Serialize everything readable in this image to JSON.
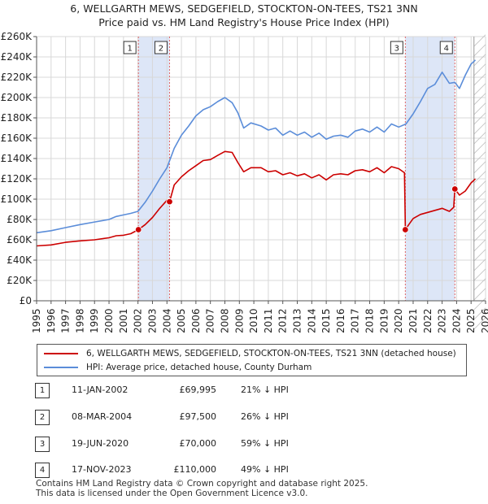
{
  "title_line1": "6, WELLGARTH MEWS, SEDGEFIELD, STOCKTON-ON-TEES, TS21 3NN",
  "title_line2": "Price paid vs. HM Land Registry's House Price Index (HPI)",
  "colors": {
    "price_line": "#cc0000",
    "hpi_line": "#5b8dd9",
    "shade": "#dde6f7",
    "grid": "#d8d8d8",
    "marker_dash": "#e06666"
  },
  "chart_data": {
    "type": "line",
    "title": "6, WELLGARTH MEWS, SEDGEFIELD, STOCKTON-ON-TEES, TS21 3NN — Price paid vs. HM Land Registry's House Price Index (HPI)",
    "xlabel": "",
    "ylabel": "",
    "xlim": [
      1995,
      2026
    ],
    "ylim": [
      0,
      260000
    ],
    "grid": true,
    "y_ticks": [
      0,
      20000,
      40000,
      60000,
      80000,
      100000,
      120000,
      140000,
      160000,
      180000,
      200000,
      220000,
      240000,
      260000
    ],
    "y_tick_labels": [
      "£0",
      "£20K",
      "£40K",
      "£60K",
      "£80K",
      "£100K",
      "£120K",
      "£140K",
      "£160K",
      "£180K",
      "£200K",
      "£220K",
      "£240K",
      "£260K"
    ],
    "x_ticks": [
      1995,
      1996,
      1997,
      1998,
      1999,
      2000,
      2001,
      2002,
      2003,
      2004,
      2005,
      2006,
      2007,
      2008,
      2009,
      2010,
      2011,
      2012,
      2013,
      2014,
      2015,
      2016,
      2017,
      2018,
      2019,
      2020,
      2021,
      2022,
      2023,
      2024,
      2025,
      2026
    ],
    "x_tick_labels": [
      "1995",
      "1996",
      "1997",
      "1998",
      "1999",
      "2000",
      "2001",
      "2002",
      "2003",
      "2004",
      "2005",
      "2006",
      "2007",
      "2008",
      "2009",
      "2010",
      "2011",
      "2012",
      "2013",
      "2014",
      "2015",
      "2016",
      "2017",
      "2018",
      "2019",
      "2020",
      "2021",
      "2022",
      "2023",
      "2024",
      "2025",
      "2026"
    ],
    "shaded_ranges": [
      [
        2002.03,
        2004.18
      ],
      [
        2020.46,
        2023.88
      ]
    ],
    "forecast_start": 2025.2,
    "markers": [
      {
        "label": "1",
        "x": 2002.03,
        "y": 69995
      },
      {
        "label": "2",
        "x": 2004.18,
        "y": 97500
      },
      {
        "label": "3",
        "x": 2020.46,
        "y": 70000
      },
      {
        "label": "4",
        "x": 2023.88,
        "y": 110000
      }
    ],
    "series": [
      {
        "name": "6, WELLGARTH MEWS, SEDGEFIELD, STOCKTON-ON-TEES, TS21 3NN (detached house)",
        "color": "#cc0000",
        "x": [
          1995,
          1996,
          1997,
          1998,
          1999,
          2000,
          2000.5,
          2001,
          2001.5,
          2002.03,
          2002.5,
          2003,
          2003.5,
          2004.0,
          2004.18,
          2004.5,
          2005,
          2005.5,
          2006,
          2006.5,
          2007,
          2007.5,
          2008,
          2008.5,
          2008.9,
          2009.3,
          2009.8,
          2010.5,
          2011,
          2011.5,
          2012,
          2012.5,
          2013,
          2013.5,
          2014,
          2014.5,
          2015,
          2015.5,
          2016,
          2016.5,
          2017,
          2017.5,
          2018,
          2018.5,
          2019,
          2019.5,
          2020,
          2020.4,
          2020.46,
          2020.7,
          2021,
          2021.5,
          2022,
          2022.5,
          2023,
          2023.5,
          2023.8,
          2023.88,
          2024.2,
          2024.6,
          2025,
          2025.3
        ],
        "values": [
          54000,
          55000,
          57500,
          59000,
          60000,
          62000,
          64000,
          64500,
          66000,
          69995,
          75000,
          82000,
          91000,
          99000,
          97500,
          114000,
          122000,
          128000,
          133000,
          138000,
          139000,
          143000,
          147000,
          146000,
          136000,
          127000,
          131000,
          131000,
          127000,
          128000,
          124000,
          126000,
          123000,
          125000,
          121000,
          124000,
          119000,
          124000,
          125000,
          124000,
          128000,
          129000,
          127000,
          131000,
          126000,
          132000,
          130000,
          126000,
          70000,
          75000,
          81000,
          85000,
          87000,
          89000,
          91000,
          88000,
          92000,
          110000,
          104000,
          108000,
          116000,
          120000
        ]
      },
      {
        "name": "HPI: Average price, detached house, County Durham",
        "color": "#5b8dd9",
        "x": [
          1995,
          1996,
          1997,
          1998,
          1999,
          2000,
          2000.5,
          2001,
          2001.5,
          2002,
          2002.5,
          2003,
          2003.5,
          2004,
          2004.5,
          2005,
          2005.5,
          2006,
          2006.5,
          2007,
          2007.5,
          2008,
          2008.5,
          2008.9,
          2009.3,
          2009.8,
          2010.5,
          2011,
          2011.5,
          2012,
          2012.5,
          2013,
          2013.5,
          2014,
          2014.5,
          2015,
          2015.5,
          2016,
          2016.5,
          2017,
          2017.5,
          2018,
          2018.5,
          2019,
          2019.5,
          2020,
          2020.5,
          2021,
          2021.5,
          2022,
          2022.5,
          2023,
          2023.5,
          2023.88,
          2024.2,
          2024.6,
          2025,
          2025.3
        ],
        "values": [
          67000,
          69000,
          72000,
          75000,
          77500,
          80000,
          83000,
          84500,
          86000,
          88000,
          97000,
          108000,
          120000,
          131000,
          150000,
          163000,
          172000,
          182000,
          188000,
          191000,
          196000,
          200000,
          195000,
          185000,
          170000,
          175000,
          172000,
          168000,
          170000,
          163000,
          167000,
          163000,
          166000,
          161000,
          165000,
          159000,
          162000,
          163000,
          161000,
          167000,
          169000,
          166000,
          171000,
          166000,
          174000,
          171000,
          174000,
          184000,
          196000,
          209000,
          213000,
          225000,
          214000,
          215000,
          209000,
          222000,
          233000,
          237000
        ]
      }
    ]
  },
  "legend": {
    "property_label": "6, WELLGARTH MEWS, SEDGEFIELD, STOCKTON-ON-TEES, TS21 3NN (detached house)",
    "hpi_label": "HPI: Average price, detached house, County Durham"
  },
  "transactions": [
    {
      "num": "1",
      "date": "11-JAN-2002",
      "price": "£69,995",
      "hpi": "21% ↓ HPI"
    },
    {
      "num": "2",
      "date": "08-MAR-2004",
      "price": "£97,500",
      "hpi": "26% ↓ HPI"
    },
    {
      "num": "3",
      "date": "19-JUN-2020",
      "price": "£70,000",
      "hpi": "59% ↓ HPI"
    },
    {
      "num": "4",
      "date": "17-NOV-2023",
      "price": "£110,000",
      "hpi": "49% ↓ HPI"
    }
  ],
  "footer": {
    "line1": "Contains HM Land Registry data © Crown copyright and database right 2025.",
    "line2": "This data is licensed under the Open Government Licence v3.0."
  }
}
